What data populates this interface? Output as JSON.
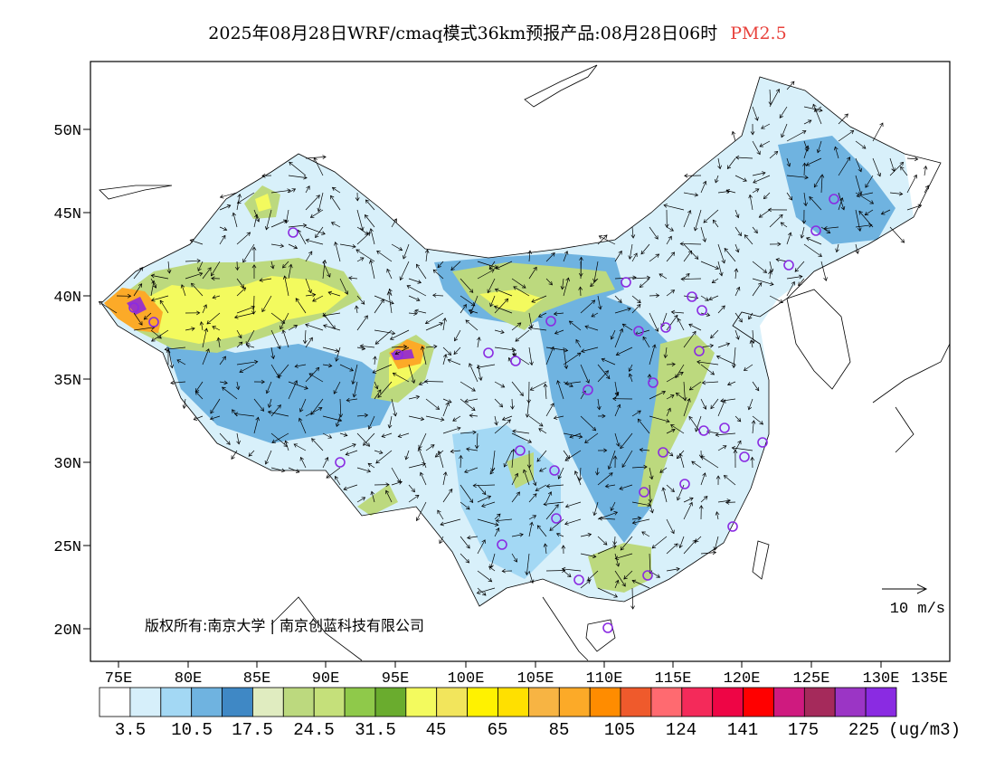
{
  "title": {
    "main": "2025年08月28日WRF/cmaq模式36km预报产品:08月28日06时",
    "pollutant": "PM2.5",
    "pollutant_color": "#e8423c"
  },
  "map": {
    "lat_labels": [
      "50N",
      "45N",
      "40N",
      "35N",
      "30N",
      "25N",
      "20N"
    ],
    "lon_labels": [
      "75E",
      "80E",
      "85E",
      "90E",
      "95E",
      "100E",
      "105E",
      "110E",
      "115E",
      "120E",
      "125E",
      "130E",
      "135E"
    ],
    "copyright": "版权所有:南京大学 | 南京创蓝科技有限公司",
    "wind_scale_label": "10 m/s"
  },
  "colorbar": {
    "colors": [
      "#ffffff",
      "#d6effa",
      "#a3d8f4",
      "#6fb3e0",
      "#3f88c5",
      "#e0ecc0",
      "#bcd97e",
      "#c5e07a",
      "#8fc94a",
      "#6aac2e",
      "#f3fa5e",
      "#f2e55c",
      "#fff200",
      "#ffe000",
      "#f7b443",
      "#fcaa28",
      "#ff8c00",
      "#ef5a2c",
      "#ff6a70",
      "#f42a5a",
      "#ee0545",
      "#ff0000",
      "#cf1a7f",
      "#a52a5b",
      "#9b35c5",
      "#8a2be2"
    ],
    "labels": [
      "3.5",
      "10.5",
      "17.5",
      "24.5",
      "31.5",
      "45",
      "65",
      "85",
      "105",
      "124",
      "141",
      "175",
      "225"
    ],
    "unit": "(ug/m3)"
  },
  "concentration_colors": {
    "low": "#d6effa",
    "light": "#a3d8f4",
    "mid": "#6fb3e0",
    "green": "#bcd97e",
    "yellow": "#f3fa5e",
    "orange": "#fcaa28",
    "purple": "#9b35c5"
  },
  "city_marker_color": "#8a2be2"
}
